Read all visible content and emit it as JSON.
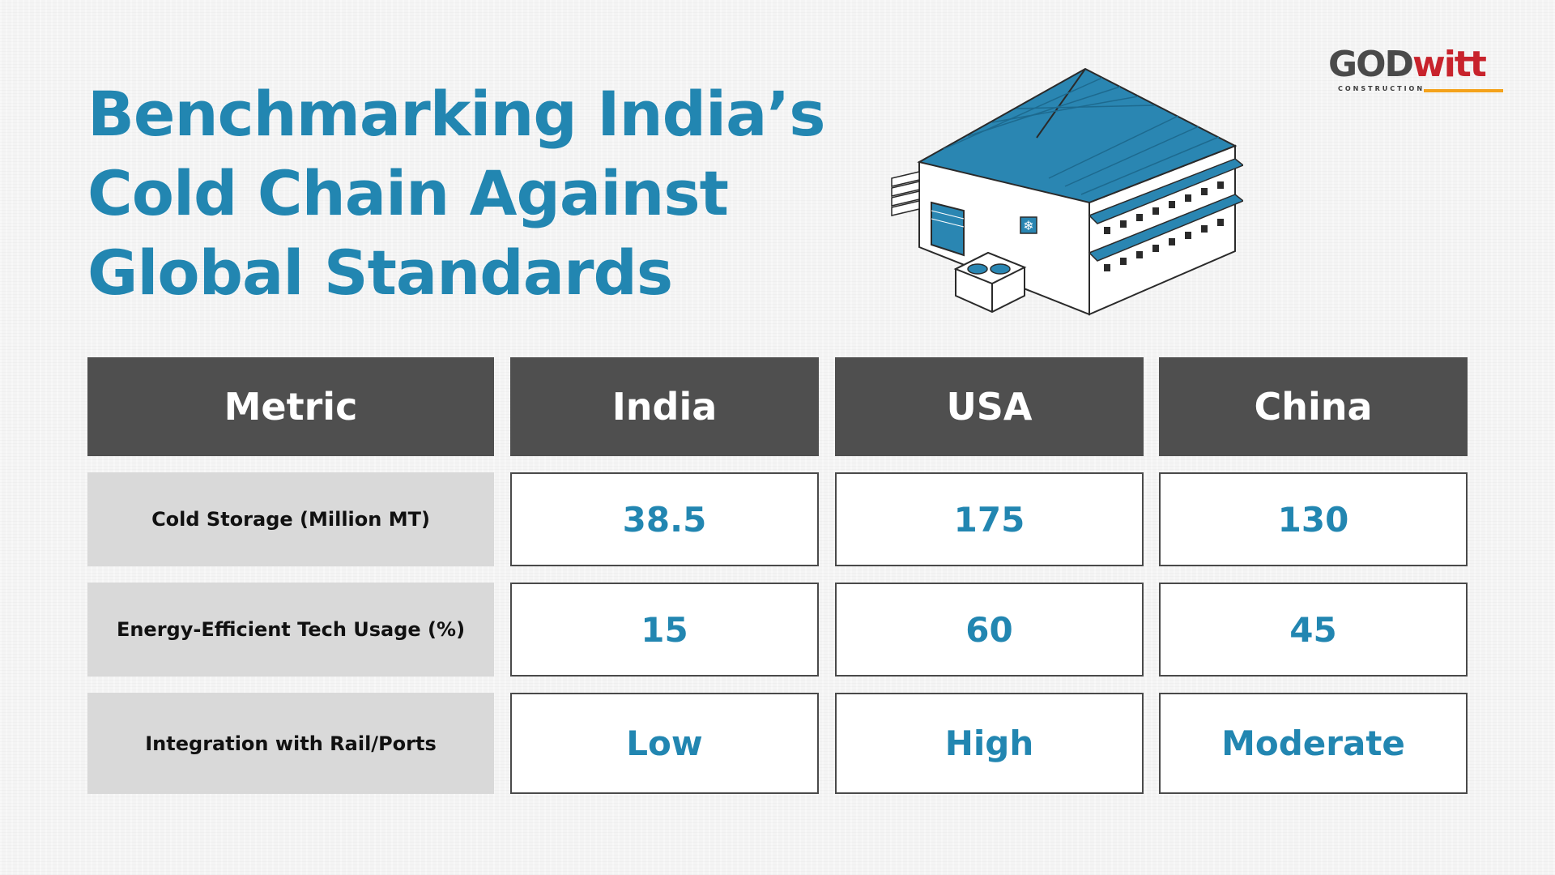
{
  "title": {
    "line1": "Benchmarking India’s",
    "line2": "Cold Chain Against",
    "line3": "Global Standards"
  },
  "logo": {
    "part1": "GOD",
    "part2": "witt",
    "sub": "CONSTRUCTION",
    "colors": {
      "god": "#4a4a4a",
      "witt": "#c8232c",
      "bar": "#f4a21b"
    }
  },
  "illustration": {
    "icon": "cold-storage-warehouse-icon",
    "accent": "#2286b1"
  },
  "colors": {
    "title": "#2286b1",
    "header_bg": "#4f4f4f",
    "metric_bg": "#d9d9d9",
    "value_text": "#2286b1"
  },
  "chart_data": {
    "type": "table",
    "columns": [
      "Metric",
      "India",
      "USA",
      "China"
    ],
    "rows": [
      {
        "metric": "Cold Storage (Million MT)",
        "values": [
          "38.5",
          "175",
          "130"
        ]
      },
      {
        "metric": "Energy-Efficient Tech Usage (%)",
        "values": [
          "15",
          "60",
          "45"
        ]
      },
      {
        "metric": "Integration with Rail/Ports",
        "values": [
          "Low",
          "High",
          "Moderate"
        ]
      }
    ]
  }
}
